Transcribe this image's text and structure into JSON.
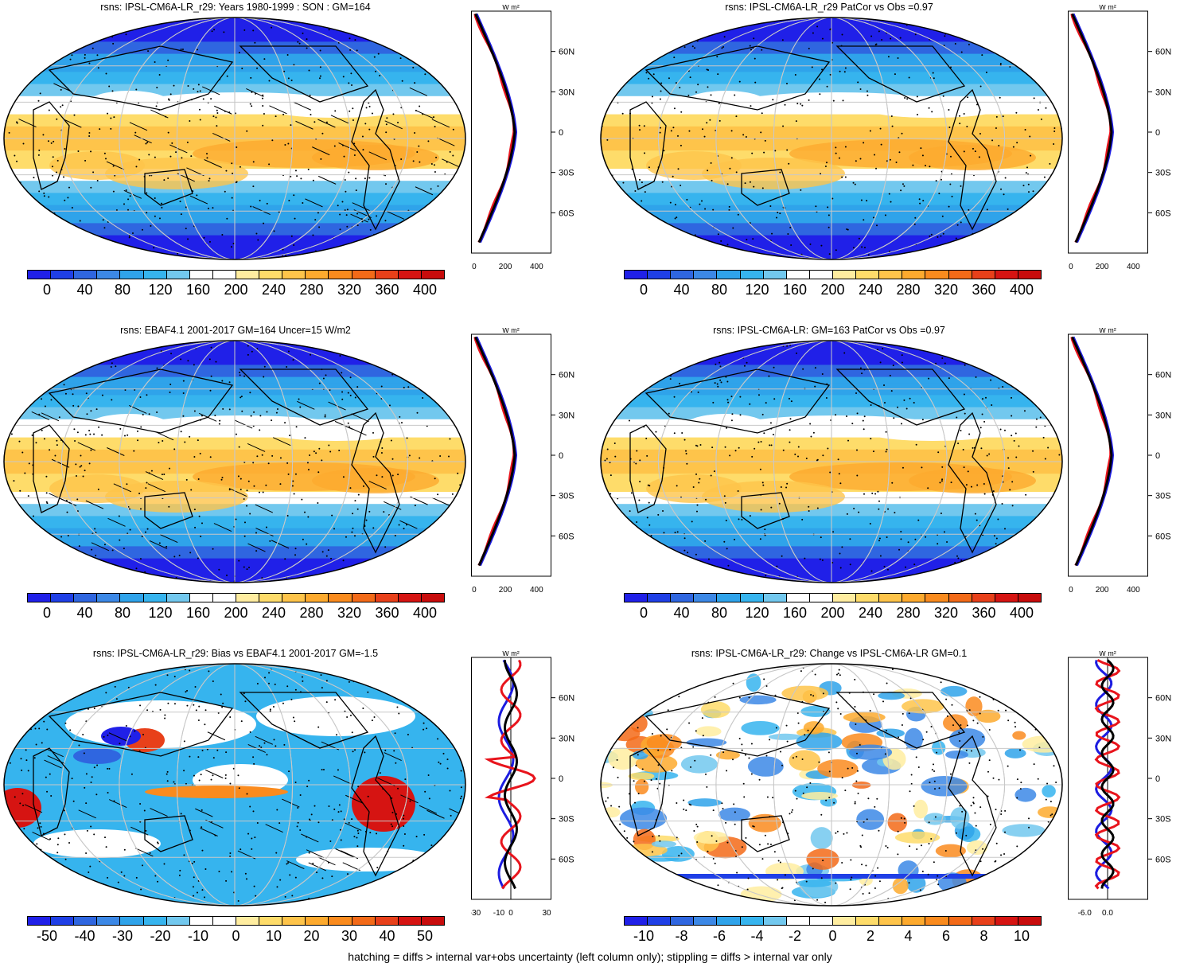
{
  "panels": [
    {
      "id": "p1",
      "title": "rsns: IPSL-CM6A-LR_r29: Years 1980-1999 : SON : GM=164",
      "kind": "abs",
      "hatch": true
    },
    {
      "id": "p2",
      "title": "rsns: IPSL-CM6A-LR_r29 PatCor vs Obs =0.97",
      "kind": "abs",
      "hatch": false
    },
    {
      "id": "p3",
      "title": "rsns: EBAF4.1 2001-2017 GM=164 Uncer=15 W/m2",
      "kind": "abs",
      "hatch": true
    },
    {
      "id": "p4",
      "title": "rsns: IPSL-CM6A-LR: GM=163 PatCor vs Obs =0.97",
      "kind": "abs",
      "hatch": false
    },
    {
      "id": "p5",
      "title": "rsns: IPSL-CM6A-LR_r29: Bias vs EBAF4.1 2001-2017  GM=-1.5",
      "kind": "bias",
      "hatch": true
    },
    {
      "id": "p6",
      "title": "rsns: IPSL-CM6A-LR_r29: Change vs IPSL-CM6A-LR GM=0.1",
      "kind": "change",
      "hatch": false
    }
  ],
  "colorbars": {
    "abs": {
      "labels": [
        "0",
        "40",
        "80",
        "120",
        "160",
        "200",
        "240",
        "280",
        "320",
        "360",
        "400"
      ]
    },
    "bias": {
      "labels": [
        "-50",
        "-40",
        "-30",
        "-20",
        "-10",
        "0",
        "10",
        "20",
        "30",
        "40",
        "50"
      ]
    },
    "change": {
      "labels": [
        "-10",
        "-8",
        "-6",
        "-4",
        "-2",
        "0",
        "2",
        "4",
        "6",
        "8",
        "10"
      ]
    }
  },
  "profiles": {
    "unit": "W m²",
    "lat_labels": [
      "60N",
      "30N",
      "0",
      "30S",
      "60S"
    ],
    "abs_ticks": [
      "0",
      "200",
      "400"
    ],
    "bias_ticks": [
      "-30",
      "-10",
      "0",
      "30"
    ],
    "change_ticks": [
      "-6.0",
      "0.0"
    ],
    "line_colors": {
      "model": "#e8141c",
      "obs": "#1c1ce0",
      "ensemble": "#000000"
    }
  },
  "footer": "hatching = diffs > internal var+obs uncertainty (left column only); stippling = diffs > internal var only",
  "palette": [
    "#2020e8",
    "#1f3fe6",
    "#2f66e0",
    "#3c88e6",
    "#2fa3ea",
    "#36b4ee",
    "#72c8ee",
    "#ffffff",
    "#ffffff",
    "#ffeda0",
    "#fedc6a",
    "#fec44a",
    "#fdaa2e",
    "#fa8b1e",
    "#f36a18",
    "#e8401a",
    "#d61412",
    "#c80c0c"
  ]
}
